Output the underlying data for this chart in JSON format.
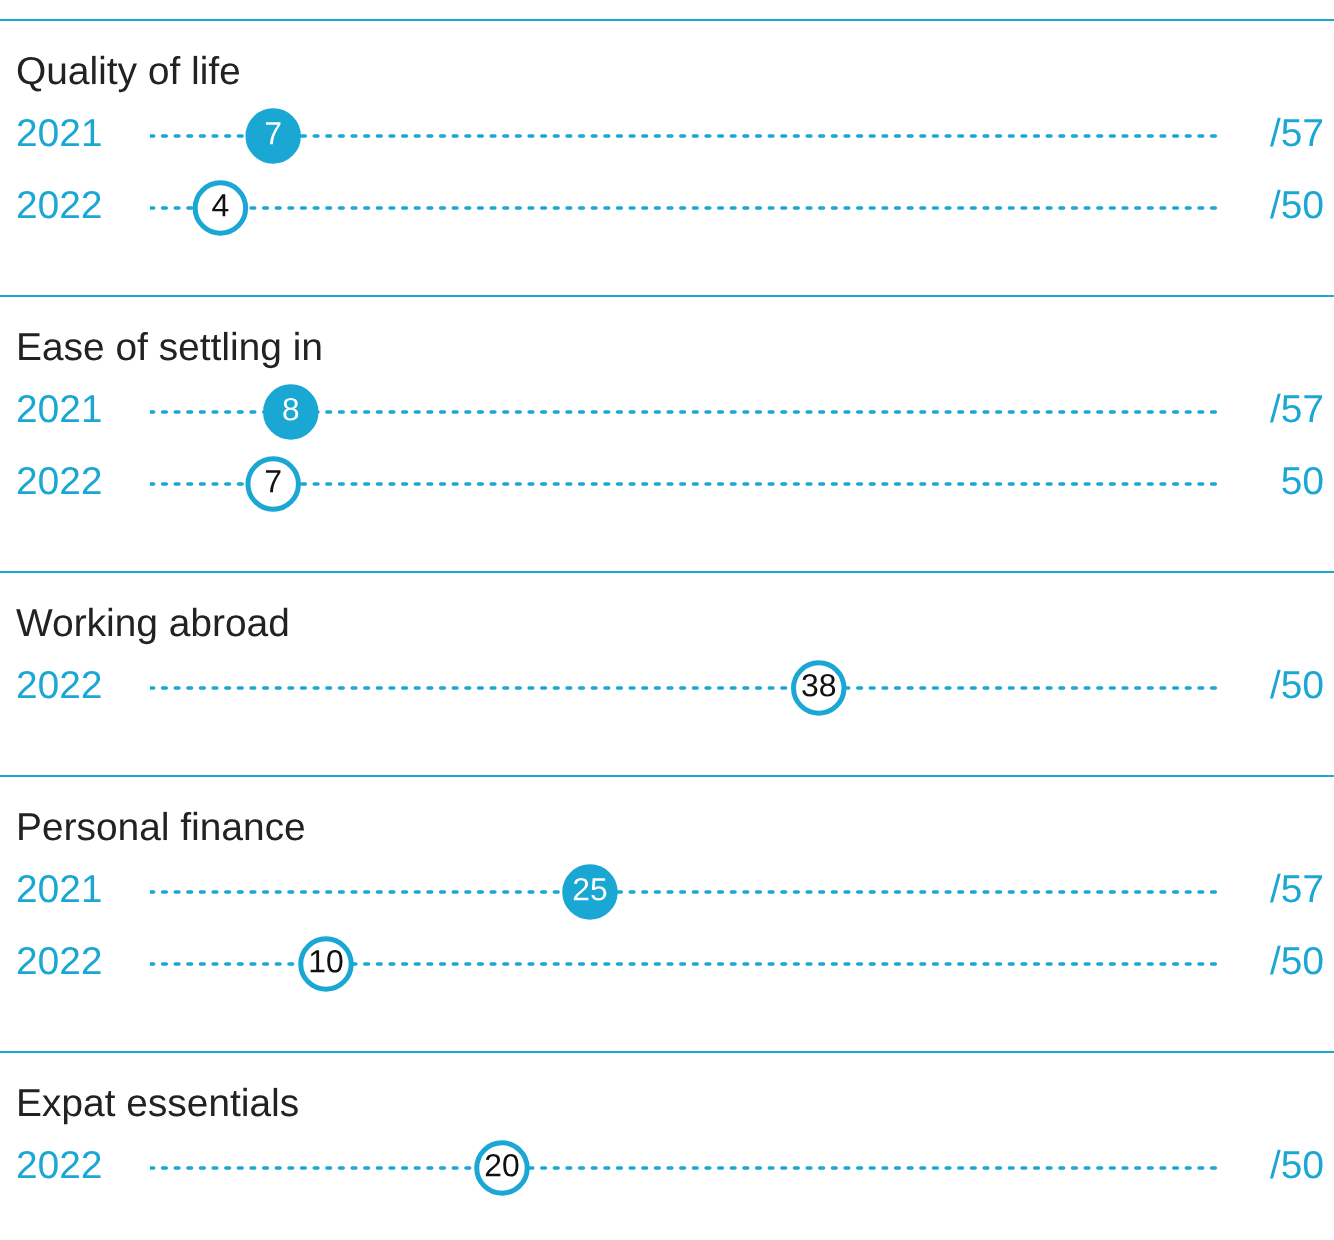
{
  "chart_data": [
    {
      "type": "other",
      "title": "Quality of life",
      "categories": [
        "2021",
        "2022"
      ],
      "values": [
        7,
        4
      ],
      "colors": [
        "#1aa7d4",
        "#ffffff"
      ],
      "data_labels": true,
      "annotations": [
        "/57",
        "/50"
      ]
    },
    {
      "type": "other",
      "title": "Ease of settling in",
      "categories": [
        "2021",
        "2022"
      ],
      "values": [
        8,
        7
      ],
      "colors": [
        "#1aa7d4",
        "#ffffff"
      ],
      "data_labels": true,
      "annotations": [
        "/57",
        "50"
      ]
    },
    {
      "type": "other",
      "title": "Working abroad",
      "categories": [
        "2022"
      ],
      "values": [
        38
      ],
      "colors": [
        "#ffffff"
      ],
      "data_labels": true,
      "annotations": [
        "/50"
      ]
    },
    {
      "type": "other",
      "title": "Personal finance",
      "categories": [
        "2021",
        "2022"
      ],
      "values": [
        25,
        10
      ],
      "colors": [
        "#1aa7d4",
        "#ffffff"
      ],
      "data_labels": true,
      "annotations": [
        "/57",
        "/50"
      ]
    },
    {
      "type": "other",
      "title": "Expat essentials",
      "categories": [
        "2022"
      ],
      "values": [
        20
      ],
      "colors": [
        "#ffffff"
      ],
      "data_labels": true,
      "annotations": [
        "/50"
      ]
    }
  ]
}
